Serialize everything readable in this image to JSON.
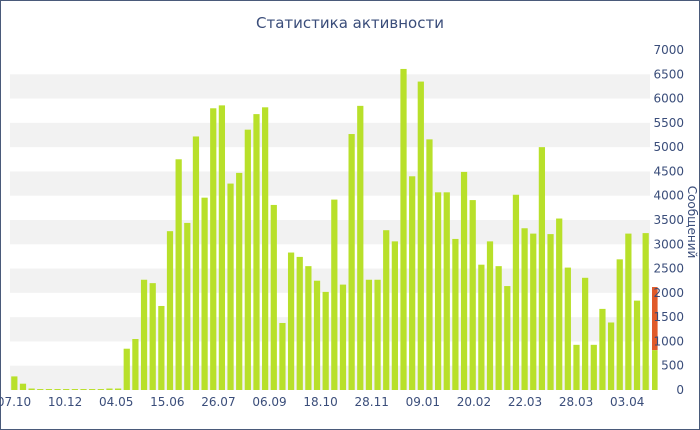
{
  "chart_data": {
    "type": "bar",
    "title": "Статистика активности",
    "ylabel": "Сообщений",
    "xlabel": "",
    "ylim": [
      0,
      7000
    ],
    "yticks": [
      0,
      500,
      1000,
      1500,
      2000,
      2500,
      3000,
      3500,
      4000,
      4500,
      5000,
      5500,
      6000,
      6500,
      7000
    ],
    "xtick_labels": [
      "07.10",
      "10.12",
      "04.05",
      "15.06",
      "26.07",
      "06.09",
      "18.10",
      "28.11",
      "09.01",
      "20.02",
      "22.03",
      "28.03",
      "03.04"
    ],
    "grid": "horizontal bands",
    "colors": {
      "bar": "#b8e02a",
      "highlight": "#e05a2a",
      "axis_text": "#3a4d7a",
      "band": "#f2f2f2"
    },
    "values": [
      280,
      130,
      30,
      20,
      20,
      20,
      20,
      20,
      20,
      20,
      20,
      30,
      30,
      850,
      1050,
      2270,
      2200,
      1730,
      3270,
      4750,
      3440,
      5220,
      3960,
      5800,
      5860,
      4250,
      4470,
      5360,
      5680,
      5820,
      3810,
      1380,
      2830,
      2740,
      2550,
      2250,
      2020,
      3920,
      2170,
      5270,
      5850,
      2270,
      2270,
      3290,
      3060,
      6610,
      4400,
      6350,
      5160,
      4070,
      4070,
      3110,
      4490,
      3910,
      2580,
      3060,
      2550,
      2140,
      4020,
      3330,
      3220,
      5000,
      3210,
      3530,
      2520,
      930,
      2310,
      930,
      1670,
      1390,
      2690,
      3220,
      1840,
      3230
    ],
    "current": {
      "low": 820,
      "high": 2120
    }
  }
}
